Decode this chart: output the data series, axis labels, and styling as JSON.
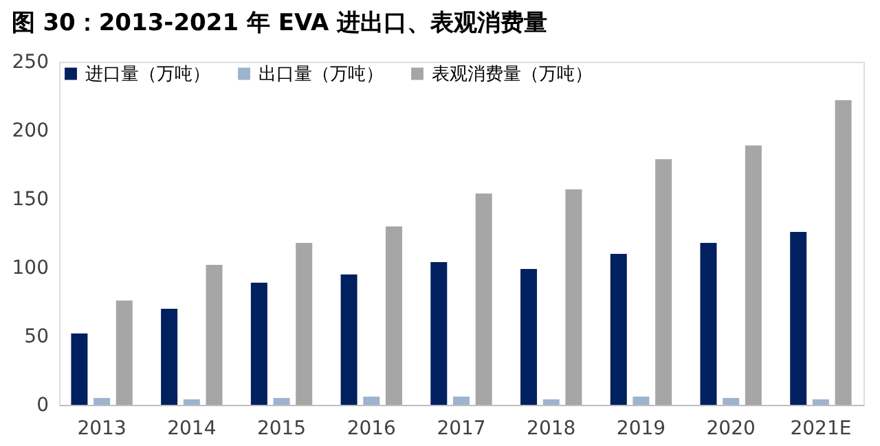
{
  "chart_data": {
    "type": "bar",
    "title": "图 30：2013-2021 年 EVA 进出口、表观消费量",
    "categories": [
      "2013",
      "2014",
      "2015",
      "2016",
      "2017",
      "2018",
      "2019",
      "2020",
      "2021E"
    ],
    "series": [
      {
        "name": "进口量（万吨）",
        "color": "#002060",
        "values": [
          52,
          70,
          89,
          95,
          104,
          99,
          110,
          118,
          126
        ]
      },
      {
        "name": "出口量（万吨）",
        "color": "#9db3cf",
        "values": [
          5,
          4,
          5,
          6,
          6,
          4,
          6,
          5,
          4
        ]
      },
      {
        "name": "表观消费量（万吨）",
        "color": "#a6a6a6",
        "values": [
          76,
          102,
          118,
          130,
          154,
          157,
          179,
          189,
          222
        ]
      }
    ],
    "ylim": [
      0,
      250
    ],
    "yticks": [
      0,
      50,
      100,
      150,
      200,
      250
    ],
    "grid": false,
    "legend": "top left"
  }
}
